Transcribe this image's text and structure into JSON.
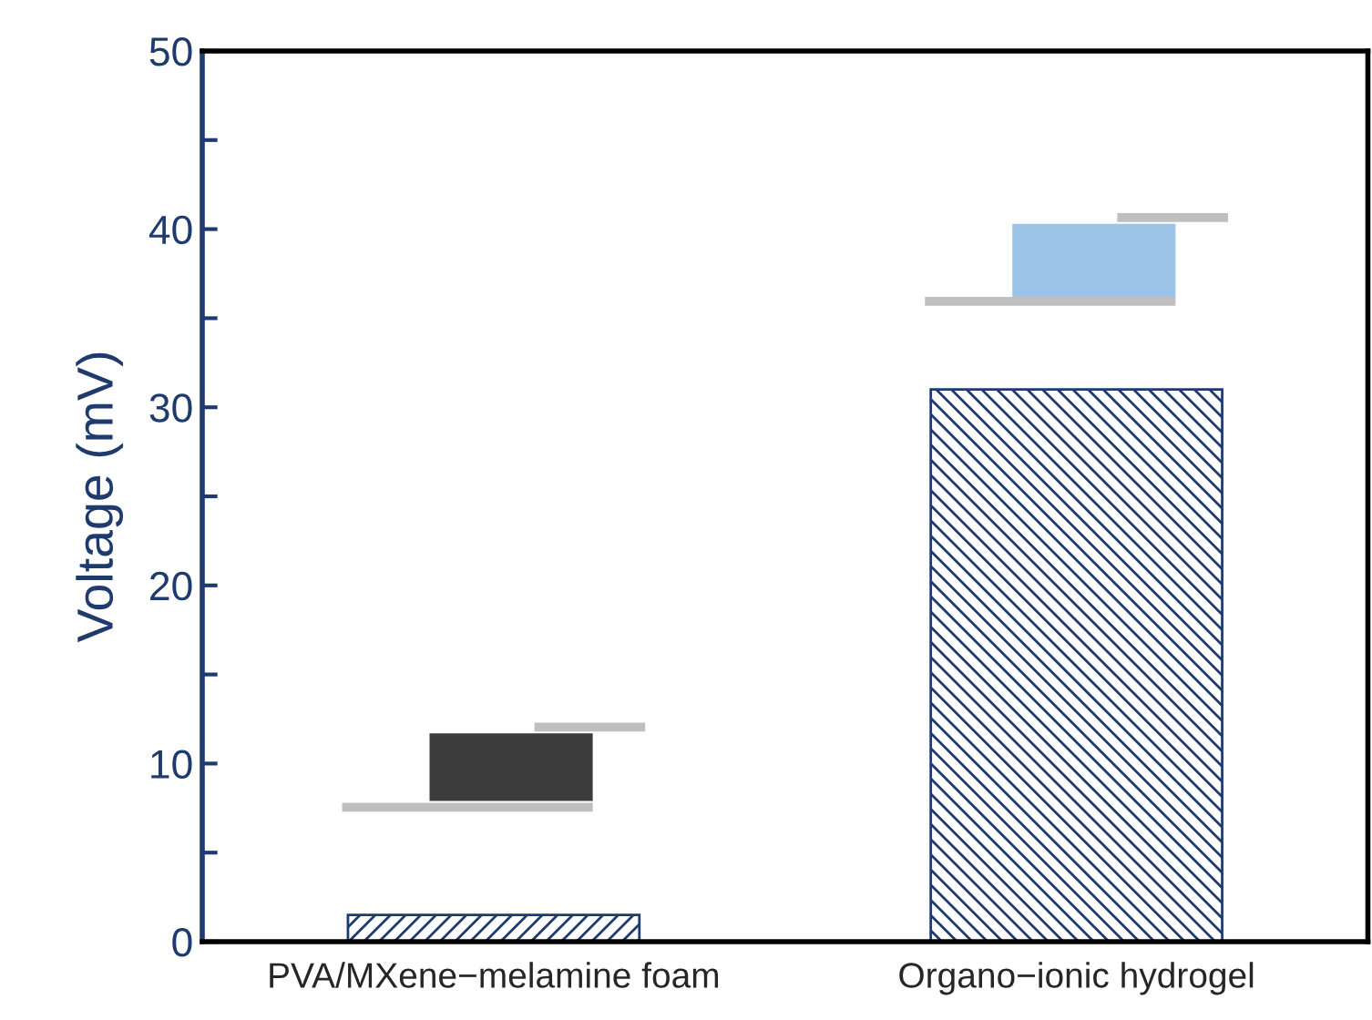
{
  "chart_data": {
    "type": "bar",
    "ylabel": "Voltage (mV)",
    "categories": [
      "PVA/MXene−melamine foam",
      "Organo−ionic hydrogel"
    ],
    "series": [
      {
        "color": "#1f3b6e",
        "values": [
          1.5,
          31
        ]
      },
      {
        "type": "bar",
        "base": [
          7.9,
          36.2
        ],
        "colors": [
          "#3c3c3c",
          "#9dc3e6"
        ],
        "values": [
          3.8,
          4.1
        ]
      },
      {
        "type": "bar",
        "color": "#bfbfbf",
        "base": [
          7.3,
          35.7
        ],
        "values": [
          0.5,
          0.5
        ]
      },
      {
        "type": "bar",
        "color": "#bfbfbf",
        "base": [
          11.8,
          40.4
        ],
        "values": [
          0.5,
          0.5
        ]
      }
    ],
    "ylim": [
      0,
      50
    ],
    "yticks": [
      0,
      {
        "value": 5,
        "label": null
      },
      10,
      {
        "value": 15,
        "label": null
      },
      20,
      {
        "value": 25,
        "label": null
      },
      30,
      {
        "value": 35,
        "label": null
      },
      40,
      {
        "value": 45,
        "label": null
      },
      50
    ],
    "grid": false,
    "legend": false
  }
}
